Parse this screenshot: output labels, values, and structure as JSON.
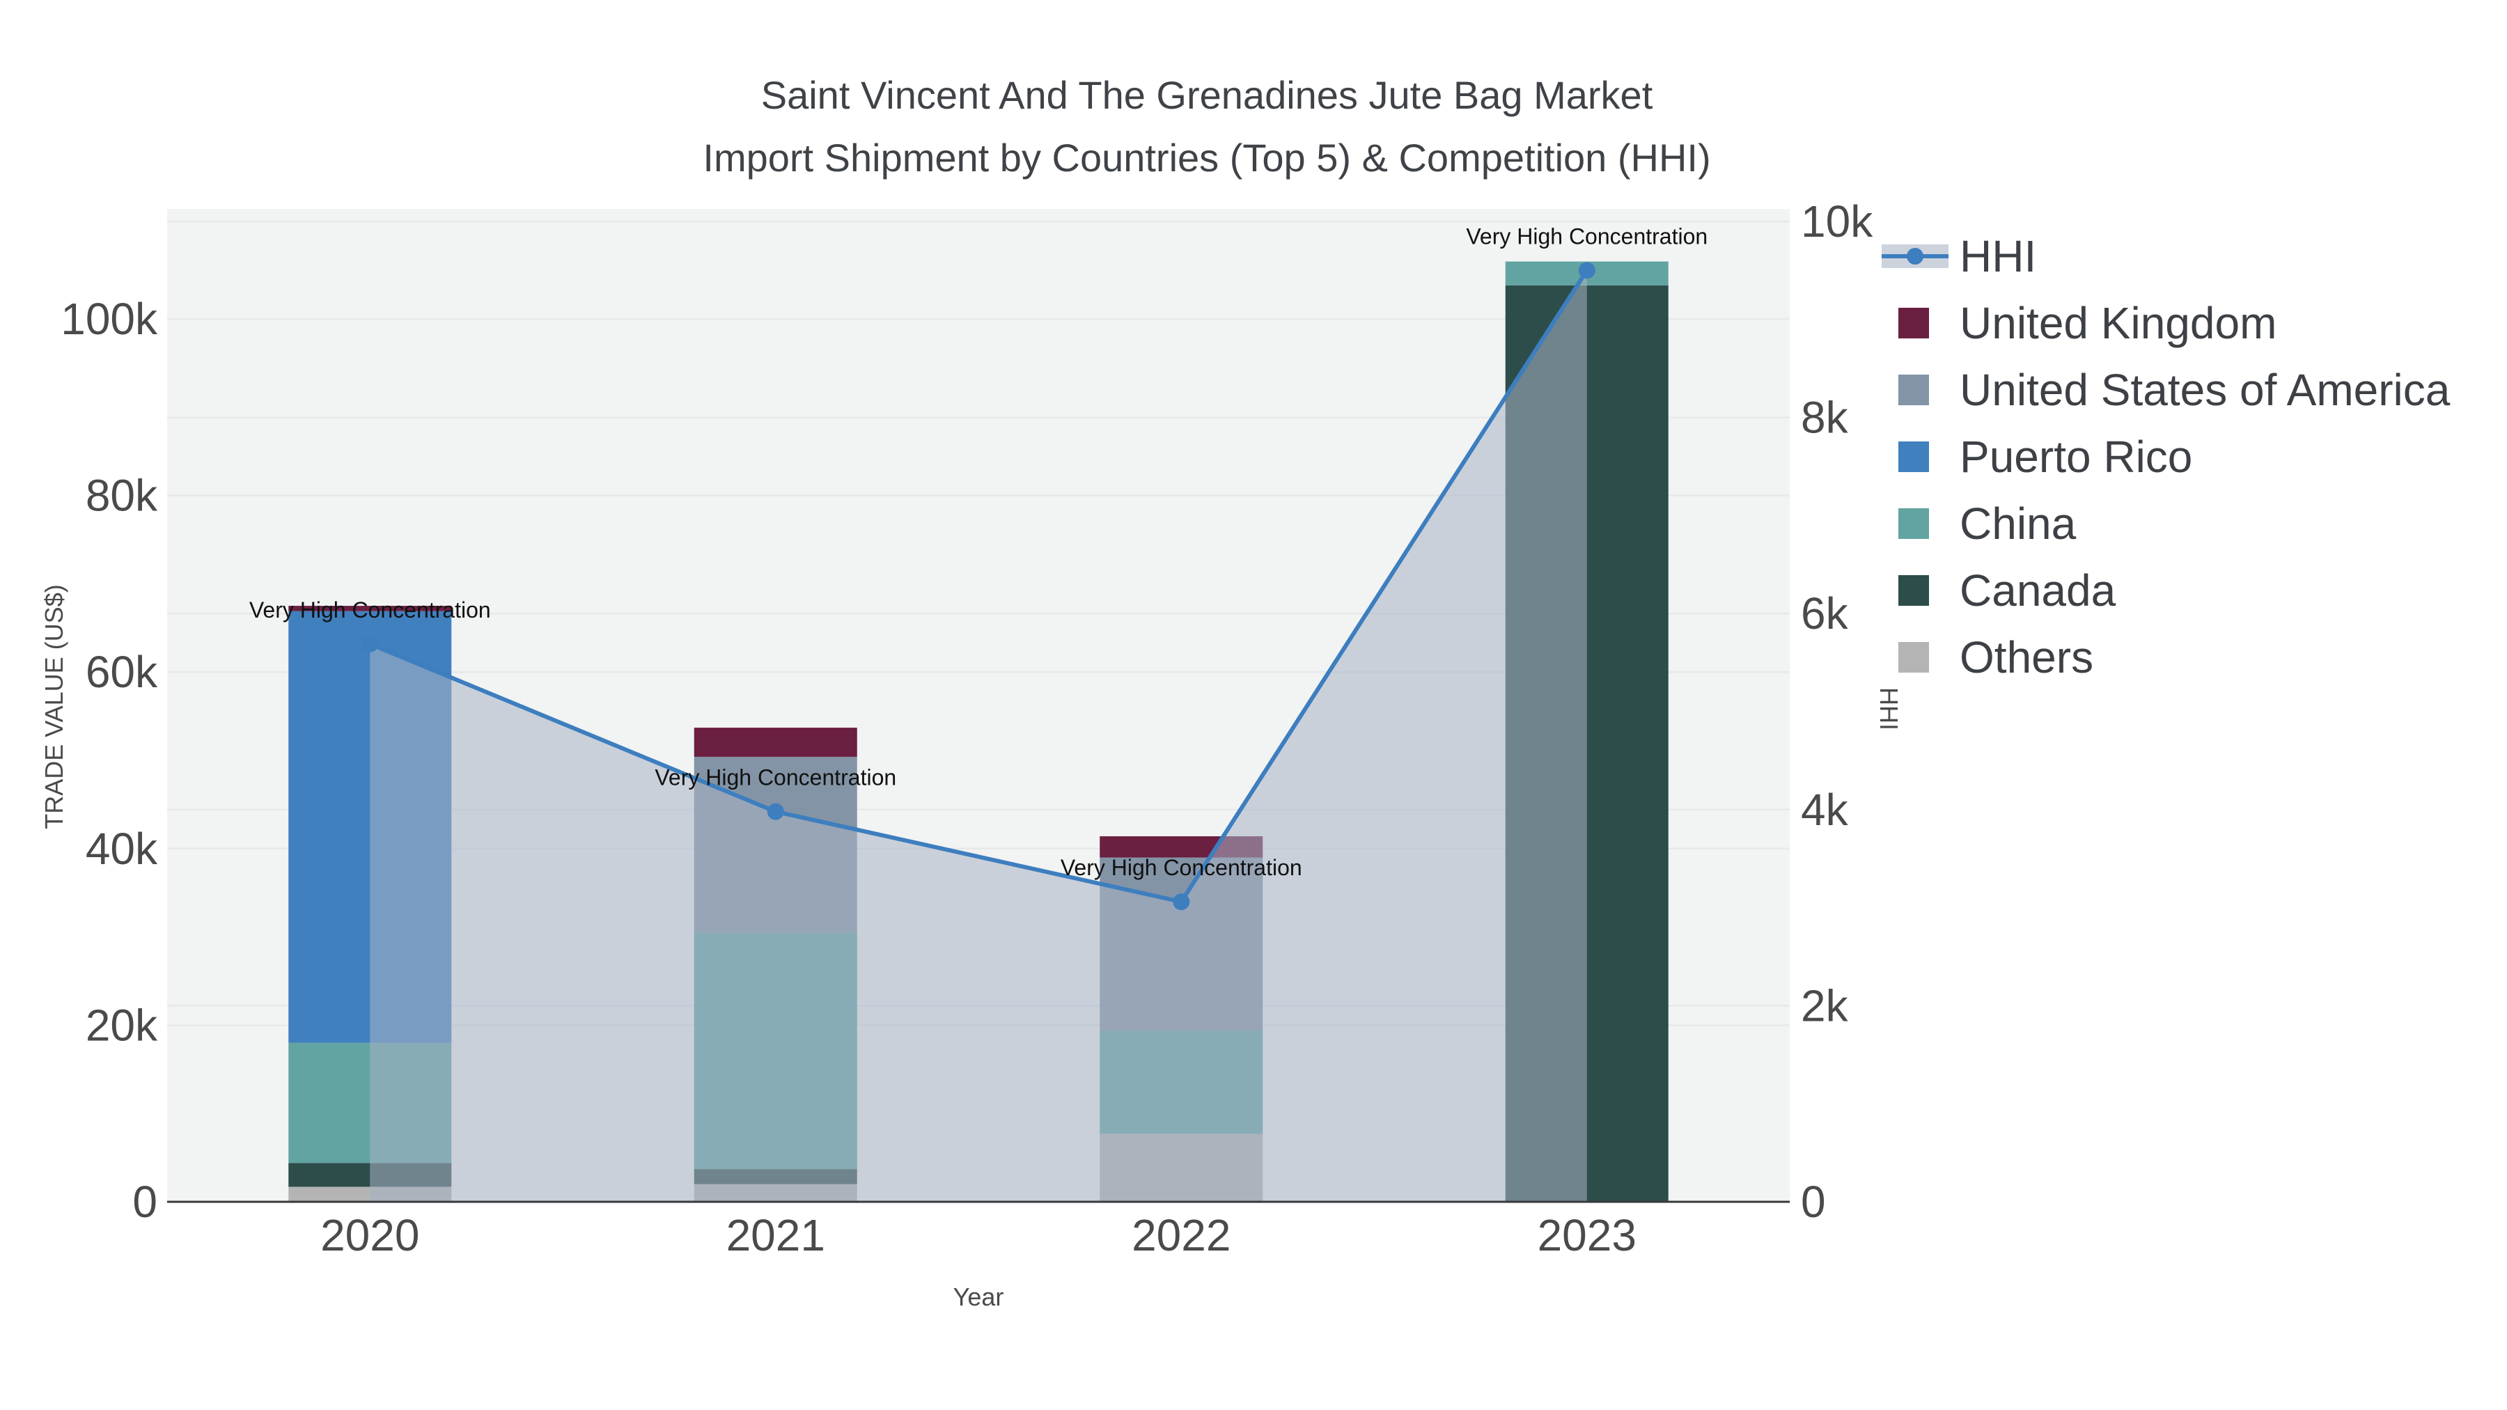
{
  "title": {
    "line1": "Saint Vincent And The Grenadines Jute Bag Market",
    "line2": "Import Shipment by Countries (Top 5) & Competition (HHI)"
  },
  "chart_data": {
    "type": "bar+line",
    "title": "Saint Vincent And The Grenadines Jute Bag Market Import Shipment by Countries (Top 5) & Competition (HHI)",
    "categories": [
      "2020",
      "2021",
      "2022",
      "2023"
    ],
    "bar_unit": "US$",
    "bar_stack_order_bottom_to_top": [
      "Others",
      "Canada",
      "China",
      "Puerto Rico",
      "United States of America",
      "United Kingdom"
    ],
    "series": [
      {
        "name": "Others",
        "color": "#b4b4b4",
        "values": [
          1700,
          2000,
          7700,
          0
        ]
      },
      {
        "name": "Canada",
        "color": "#2d4d4b",
        "values": [
          2700,
          1700,
          0,
          103800
        ]
      },
      {
        "name": "China",
        "color": "#62a4a2",
        "values": [
          13600,
          26800,
          11700,
          2700
        ]
      },
      {
        "name": "Puerto Rico",
        "color": "#4080bf",
        "values": [
          48900,
          0,
          0,
          0
        ]
      },
      {
        "name": "United States of America",
        "color": "#8394a6",
        "values": [
          0,
          19900,
          19600,
          0
        ]
      },
      {
        "name": "United Kingdom",
        "color": "#6b1f41",
        "values": [
          600,
          3300,
          2400,
          0
        ]
      }
    ],
    "totals": [
      67500,
      53700,
      41400,
      106500
    ],
    "line_series": {
      "name": "HHI",
      "axis": "y2",
      "color": "#3d7ebf",
      "area_color": "rgba(168,178,196,0.55)",
      "values": [
        5690,
        3980,
        3060,
        9500
      ]
    },
    "annotations": [
      {
        "text": "Very High Concentration",
        "category": "2020"
      },
      {
        "text": "Very High Concentration",
        "category": "2021"
      },
      {
        "text": "Very High Concentration",
        "category": "2022"
      },
      {
        "text": "Very High Concentration",
        "category": "2023"
      }
    ],
    "xlabel": "Year",
    "ylabel": "TRADE VALUE (US$)",
    "y2label": "HHI",
    "y1_ticks": [
      {
        "v": 0,
        "label": "0"
      },
      {
        "v": 20000,
        "label": "20k"
      },
      {
        "v": 40000,
        "label": "40k"
      },
      {
        "v": 60000,
        "label": "60k"
      },
      {
        "v": 80000,
        "label": "80k"
      },
      {
        "v": 100000,
        "label": "100k"
      }
    ],
    "y2_ticks": [
      {
        "v": 0,
        "label": "0"
      },
      {
        "v": 2000,
        "label": "2k"
      },
      {
        "v": 4000,
        "label": "4k"
      },
      {
        "v": 6000,
        "label": "6k"
      },
      {
        "v": 8000,
        "label": "8k"
      },
      {
        "v": 10000,
        "label": "10k"
      }
    ],
    "y1_max": 112400,
    "y2_max": 10140,
    "grid": true,
    "legend_position": "right",
    "plot_bg": "#f2f3f3",
    "grid_color": "#e6e8ea",
    "axis_line_color": "#38393b",
    "tick_color": "#4a4a4a",
    "annotation_color": "#111111"
  },
  "legend": {
    "items": [
      {
        "label": "HHI",
        "type": "line",
        "color": "#3d7ebf"
      },
      {
        "label": "United Kingdom",
        "type": "swatch",
        "color": "#6b1f41"
      },
      {
        "label": "United States of America",
        "type": "swatch",
        "color": "#8394a6"
      },
      {
        "label": "Puerto Rico",
        "type": "swatch",
        "color": "#4080bf"
      },
      {
        "label": "China",
        "type": "swatch",
        "color": "#62a4a2"
      },
      {
        "label": "Canada",
        "type": "swatch",
        "color": "#2d4d4b"
      },
      {
        "label": "Others",
        "type": "swatch",
        "color": "#b4b4b4"
      }
    ]
  }
}
